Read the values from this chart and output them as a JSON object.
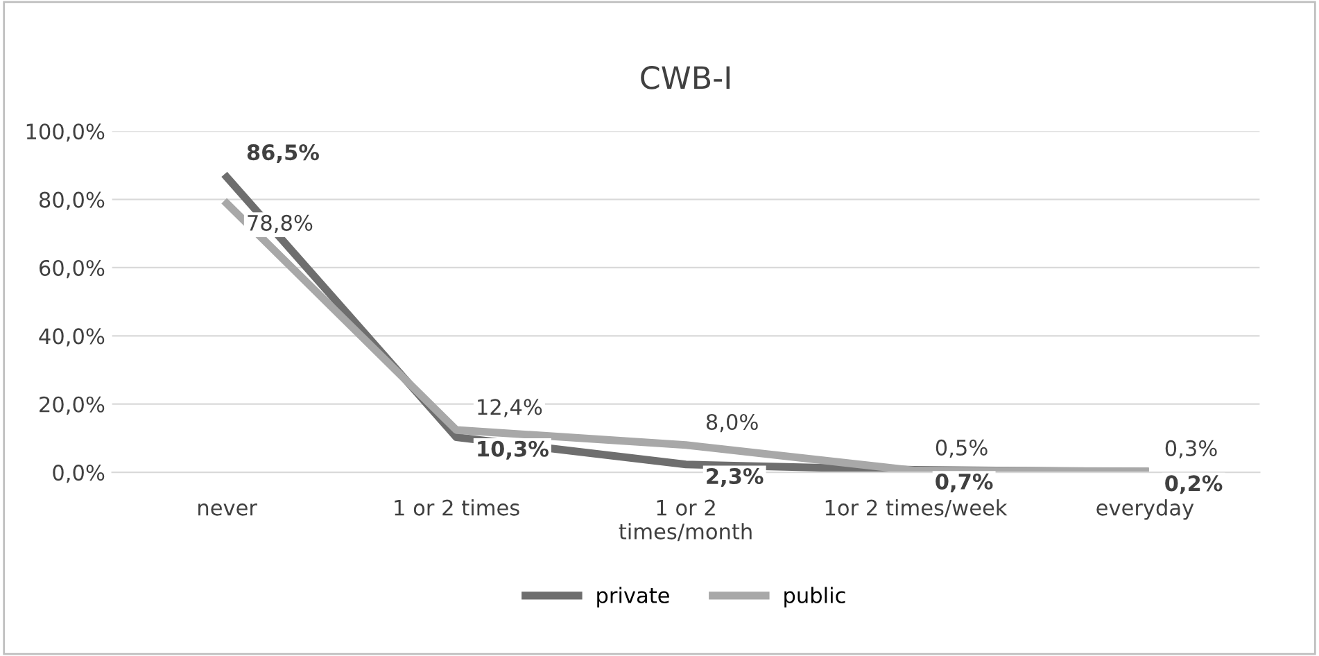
{
  "chart_data": {
    "type": "line",
    "title": "CWB-I",
    "categories": [
      "never",
      "1 or 2 times",
      "1 or 2\ntimes/month",
      "1or 2 times/week",
      "everyday"
    ],
    "series": [
      {
        "name": "private",
        "color": "#6e6e6e",
        "values": [
          86.5,
          10.3,
          2.3,
          0.7,
          0.2
        ],
        "value_labels": [
          "86,5%",
          "10,3%",
          "2,3%",
          "0,7%",
          "0,2%"
        ]
      },
      {
        "name": "public",
        "color": "#a8a8a8",
        "values": [
          78.8,
          12.4,
          8.0,
          0.5,
          0.3
        ],
        "value_labels": [
          "78,8%",
          "12,4%",
          "8,0%",
          "0,5%",
          "0,3%"
        ]
      }
    ],
    "ylim": [
      0,
      100
    ],
    "yticks": [
      {
        "value": 0,
        "label": "0,0%"
      },
      {
        "value": 20,
        "label": "20,0%"
      },
      {
        "value": 40,
        "label": "40,0%"
      },
      {
        "value": 60,
        "label": "60,0%"
      },
      {
        "value": 80,
        "label": "80,0%"
      },
      {
        "value": 100,
        "label": "100,0%"
      }
    ],
    "grid": "y",
    "legend": "bottom",
    "marker": "none",
    "line_style": "solid"
  }
}
